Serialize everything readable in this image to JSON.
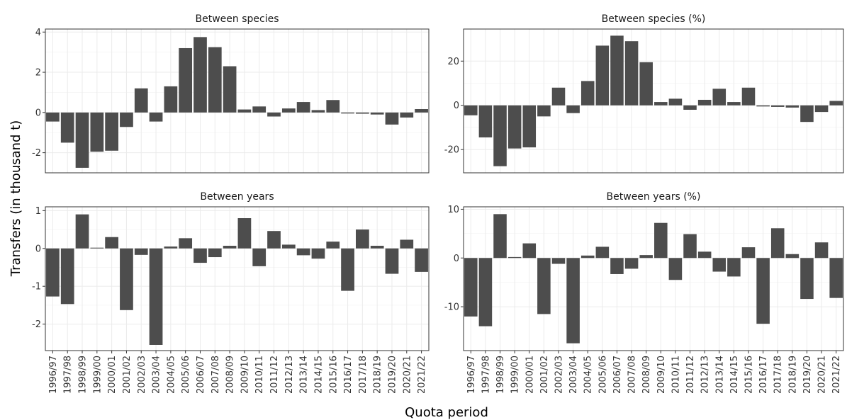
{
  "chart_data": {
    "type": "bar",
    "xlabel": "Quota period",
    "ylabel": "Transfers (in thousand t)",
    "grid": true,
    "bar_color": "#4d4d4d",
    "categories": [
      "1996/97",
      "1997/98",
      "1998/99",
      "1999/00",
      "2000/01",
      "2001/02",
      "2002/03",
      "2003/04",
      "2004/05",
      "2005/06",
      "2006/07",
      "2007/08",
      "2008/09",
      "2009/10",
      "2010/11",
      "2011/12",
      "2012/13",
      "2013/14",
      "2014/15",
      "2015/16",
      "2016/17",
      "2017/18",
      "2018/19",
      "2019/20",
      "2020/21",
      "2021/22"
    ],
    "panels": [
      {
        "title": "Between species",
        "ylim": [
          -3.0,
          4.15
        ],
        "yticks": [
          -2,
          0,
          2,
          4
        ],
        "ytick_labels": [
          "-2",
          "0",
          "2",
          "4"
        ],
        "values": [
          -0.45,
          -1.5,
          -2.75,
          -1.95,
          -1.9,
          -0.72,
          1.2,
          -0.45,
          1.3,
          3.2,
          3.75,
          3.25,
          2.3,
          0.15,
          0.3,
          -0.2,
          0.2,
          0.52,
          0.12,
          0.62,
          -0.05,
          -0.06,
          -0.1,
          -0.6,
          -0.25,
          0.17
        ]
      },
      {
        "title": "Between species (%)",
        "ylim": [
          -30.5,
          34.5
        ],
        "yticks": [
          -20,
          0,
          20
        ],
        "ytick_labels": [
          "-20",
          "0",
          "20"
        ],
        "values": [
          -4.5,
          -14.5,
          -27.5,
          -19.5,
          -19.0,
          -5.0,
          8.0,
          -3.5,
          11.0,
          27.0,
          31.5,
          29.0,
          19.5,
          1.5,
          3.0,
          -2.0,
          2.5,
          7.5,
          1.5,
          8.0,
          -0.5,
          -0.7,
          -1.0,
          -7.5,
          -3.0,
          2.0
        ]
      },
      {
        "title": "Between years",
        "ylim": [
          -2.7,
          1.1
        ],
        "yticks": [
          -2,
          -1,
          0,
          1
        ],
        "ytick_labels": [
          "-2",
          "-1",
          "0",
          "1"
        ],
        "values": [
          -1.27,
          -1.47,
          0.9,
          0.02,
          0.3,
          -1.63,
          -0.17,
          -2.55,
          0.05,
          0.27,
          -0.38,
          -0.23,
          0.07,
          0.8,
          -0.47,
          0.46,
          0.1,
          -0.18,
          -0.27,
          0.18,
          -1.12,
          0.5,
          0.07,
          -0.67,
          0.23,
          -0.62
        ]
      },
      {
        "title": "Between years (%)",
        "ylim": [
          -19.0,
          10.5
        ],
        "yticks": [
          -10,
          0,
          10
        ],
        "ytick_labels": [
          "-10",
          "0",
          "10"
        ],
        "values": [
          -12.0,
          -14.0,
          9.0,
          0.2,
          3.0,
          -11.5,
          -1.2,
          -17.5,
          0.5,
          2.3,
          -3.3,
          -2.2,
          0.6,
          7.2,
          -4.5,
          4.9,
          1.3,
          -2.8,
          -3.8,
          2.2,
          -13.5,
          6.1,
          0.8,
          -8.4,
          3.2,
          -8.2
        ]
      }
    ]
  }
}
